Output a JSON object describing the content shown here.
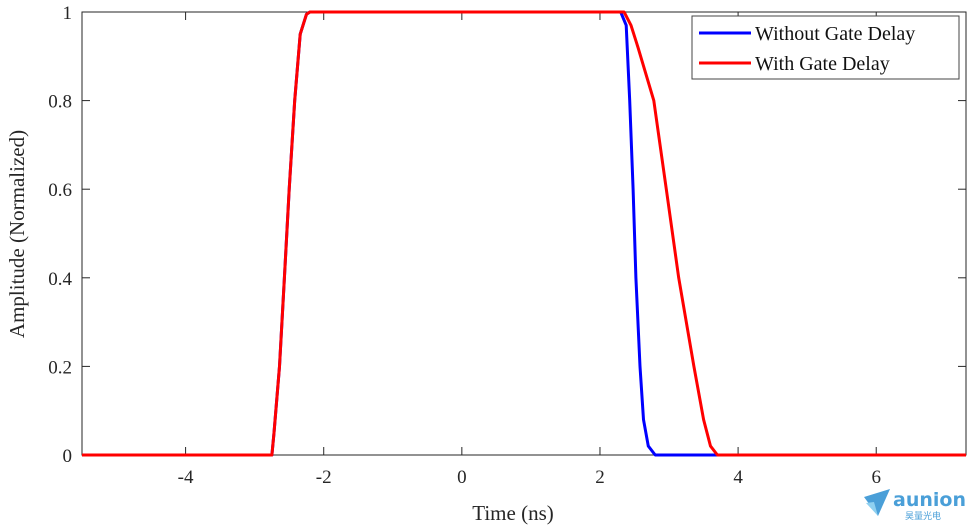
{
  "chart_data": {
    "type": "line",
    "title": "",
    "xlabel": "Time (ns)",
    "ylabel": "Amplitude (Normalized)",
    "xlim": [
      -5.5,
      7.3
    ],
    "ylim": [
      0,
      1
    ],
    "xticks": [
      -4,
      -2,
      0,
      2,
      4,
      6
    ],
    "xtick_labels": [
      "-4",
      "-2",
      "0",
      "2",
      "4",
      "6"
    ],
    "yticks": [
      0,
      0.2,
      0.4,
      0.6,
      0.8,
      1
    ],
    "ytick_labels": [
      "0",
      "0.2",
      "0.4",
      "0.6",
      "0.8",
      "1"
    ],
    "grid": false,
    "legend_position": "top-right",
    "series": [
      {
        "name": "Without Gate Delay",
        "color": "#0000ff",
        "x": [
          -5.5,
          -2.75,
          -2.72,
          -2.64,
          -2.57,
          -2.5,
          -2.42,
          -2.34,
          -2.25,
          -2.2,
          2.3,
          2.38,
          2.43,
          2.48,
          2.52,
          2.58,
          2.63,
          2.7,
          2.8,
          7.3
        ],
        "y": [
          0,
          0,
          0.05,
          0.2,
          0.4,
          0.6,
          0.8,
          0.95,
          0.995,
          1,
          1,
          0.97,
          0.8,
          0.6,
          0.4,
          0.2,
          0.08,
          0.02,
          0,
          0
        ]
      },
      {
        "name": "With Gate Delay",
        "color": "#ff0000",
        "x": [
          -5.5,
          -2.75,
          -2.72,
          -2.64,
          -2.57,
          -2.5,
          -2.42,
          -2.34,
          -2.25,
          -2.2,
          2.35,
          2.45,
          2.55,
          2.78,
          2.96,
          3.14,
          3.36,
          3.5,
          3.6,
          3.7,
          7.3
        ],
        "y": [
          0,
          0,
          0.05,
          0.2,
          0.4,
          0.6,
          0.8,
          0.95,
          0.995,
          1,
          1,
          0.97,
          0.92,
          0.8,
          0.6,
          0.4,
          0.2,
          0.08,
          0.02,
          0,
          0
        ]
      }
    ]
  },
  "watermark": {
    "brand": "aunion",
    "subtitle": "昊量光电"
  }
}
